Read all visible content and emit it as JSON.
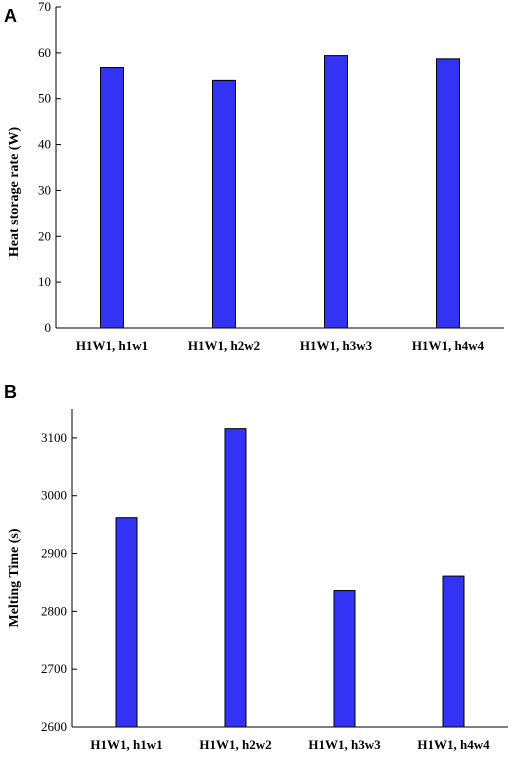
{
  "chart_data": [
    {
      "panel": "A",
      "type": "bar",
      "categories": [
        "H1W1, h1w1",
        "H1W1, h2w2",
        "H1W1, h3w3",
        "H1W1, h4w4"
      ],
      "values": [
        56.8,
        54.0,
        59.4,
        58.7
      ],
      "ylabel": "Heat storage rate (W)",
      "xlabel": "",
      "ylim": [
        0,
        70
      ],
      "yticks": [
        0,
        10,
        20,
        30,
        40,
        50,
        60,
        70
      ],
      "color": "#3333f5",
      "grid": false,
      "legend": "none"
    },
    {
      "panel": "B",
      "type": "bar",
      "categories": [
        "H1W1, h1w1",
        "H1W1, h2w2",
        "H1W1, h3w3",
        "H1W1, h4w4"
      ],
      "values": [
        2962,
        3116,
        2836,
        2861
      ],
      "ylabel": "Melting Time (s)",
      "xlabel": "",
      "ylim": [
        2600,
        3150
      ],
      "yticks": [
        2600,
        2700,
        2800,
        2900,
        3000,
        3100
      ],
      "color": "#3333f5",
      "grid": false,
      "legend": "none"
    }
  ]
}
